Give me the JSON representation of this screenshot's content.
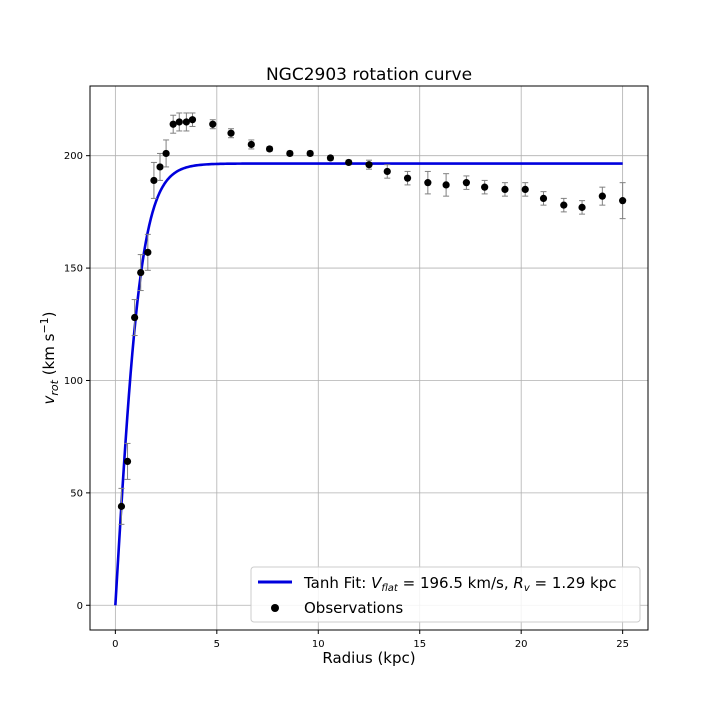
{
  "chart_data": {
    "type": "scatter",
    "title": "NGC2903 rotation curve",
    "xlabel": "Radius (kpc)",
    "ylabel_parts": {
      "v": "v",
      "sub": "rot",
      "unit_open": " (km s",
      "sup": "−1",
      "unit_close": ")"
    },
    "xlim": [
      -1.25,
      26.25
    ],
    "ylim": [
      -11,
      231
    ],
    "xticks": [
      0,
      5,
      10,
      15,
      20,
      25
    ],
    "yticks": [
      0,
      50,
      100,
      150,
      200
    ],
    "xtick_labels": [
      "0",
      "5",
      "10",
      "15",
      "20",
      "25"
    ],
    "ytick_labels": [
      "0",
      "50",
      "100",
      "150",
      "200"
    ],
    "grid": true,
    "legend_position": "lower-right",
    "fit": {
      "name_parts": {
        "lead": "Tanh Fit: ",
        "v": "V",
        "v_sub": "flat",
        "v_eq": " = 196.5 km/s, ",
        "r": "R",
        "r_sub": "v",
        "r_eq": " = 1.29 kpc"
      },
      "model": "tanh",
      "v_flat": 196.5,
      "r_v": 1.29,
      "x_range": [
        0,
        25
      ],
      "color": "#0000dd"
    },
    "observations": {
      "name": "Observations",
      "color": "#000000",
      "errorbar_color": "#808080",
      "points": [
        {
          "x": 0.3,
          "y": 44,
          "err": 8
        },
        {
          "x": 0.6,
          "y": 64,
          "err": 8
        },
        {
          "x": 0.95,
          "y": 128,
          "err": 8
        },
        {
          "x": 1.25,
          "y": 148,
          "err": 8
        },
        {
          "x": 1.6,
          "y": 157,
          "err": 8
        },
        {
          "x": 1.9,
          "y": 189,
          "err": 8
        },
        {
          "x": 2.2,
          "y": 195,
          "err": 6
        },
        {
          "x": 2.5,
          "y": 201,
          "err": 6
        },
        {
          "x": 2.85,
          "y": 214,
          "err": 4
        },
        {
          "x": 3.15,
          "y": 215,
          "err": 4
        },
        {
          "x": 3.5,
          "y": 215,
          "err": 4
        },
        {
          "x": 3.8,
          "y": 216,
          "err": 3
        },
        {
          "x": 4.8,
          "y": 214,
          "err": 2
        },
        {
          "x": 5.7,
          "y": 210,
          "err": 2
        },
        {
          "x": 6.7,
          "y": 205,
          "err": 2
        },
        {
          "x": 7.6,
          "y": 203,
          "err": 1
        },
        {
          "x": 8.6,
          "y": 201,
          "err": 1
        },
        {
          "x": 9.6,
          "y": 201,
          "err": 1
        },
        {
          "x": 10.6,
          "y": 199,
          "err": 1
        },
        {
          "x": 11.5,
          "y": 197,
          "err": 1
        },
        {
          "x": 12.5,
          "y": 196,
          "err": 2
        },
        {
          "x": 13.4,
          "y": 193,
          "err": 3
        },
        {
          "x": 14.4,
          "y": 190,
          "err": 3
        },
        {
          "x": 15.4,
          "y": 188,
          "err": 5
        },
        {
          "x": 16.3,
          "y": 187,
          "err": 5
        },
        {
          "x": 17.3,
          "y": 188,
          "err": 3
        },
        {
          "x": 18.2,
          "y": 186,
          "err": 3
        },
        {
          "x": 19.2,
          "y": 185,
          "err": 3
        },
        {
          "x": 20.2,
          "y": 185,
          "err": 3
        },
        {
          "x": 21.1,
          "y": 181,
          "err": 3
        },
        {
          "x": 22.1,
          "y": 178,
          "err": 3
        },
        {
          "x": 23.0,
          "y": 177,
          "err": 3
        },
        {
          "x": 24.0,
          "y": 182,
          "err": 4
        },
        {
          "x": 25.0,
          "y": 180,
          "err": 8
        }
      ]
    }
  }
}
